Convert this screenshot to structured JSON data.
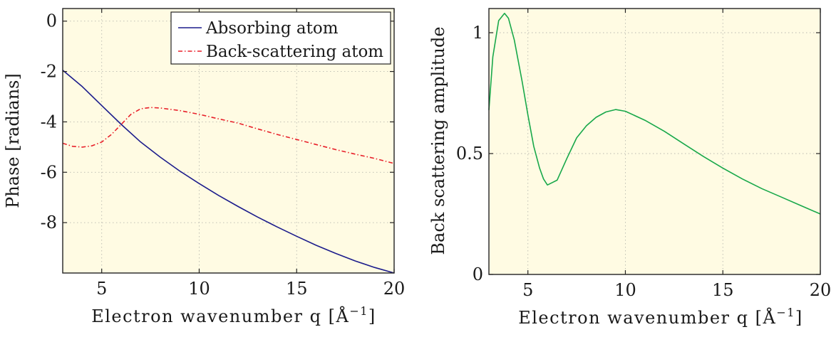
{
  "chart_data": [
    {
      "type": "line",
      "xlabel": "Electron wavenumber q [Å",
      "xlabel_sup": "−1",
      "xlabel_close": "]",
      "ylabel": "Phase [radians]",
      "xlim": [
        3,
        20
      ],
      "ylim": [
        -10,
        0.5
      ],
      "x_ticks": [
        5,
        10,
        15,
        20
      ],
      "y_ticks": [
        0,
        -2,
        -4,
        -6,
        -8
      ],
      "grid": true,
      "legend_position": "top-right",
      "background": "#fffbe3",
      "series": [
        {
          "name": "Absorbing atom",
          "color": "#1c1c8c",
          "style": "solid",
          "x": [
            3,
            4,
            5,
            6,
            7,
            8,
            9,
            10,
            11,
            12,
            13,
            14,
            15,
            16,
            17,
            18,
            19,
            20
          ],
          "y": [
            -1.95,
            -2.6,
            -3.35,
            -4.1,
            -4.8,
            -5.4,
            -5.95,
            -6.45,
            -6.92,
            -7.36,
            -7.78,
            -8.17,
            -8.54,
            -8.9,
            -9.22,
            -9.52,
            -9.78,
            -10.0
          ]
        },
        {
          "name": "Back-scattering atom",
          "color": "#e8202a",
          "style": "dashdot",
          "x": [
            3,
            3.5,
            4,
            4.5,
            5,
            5.5,
            6,
            6.5,
            7,
            7.5,
            8,
            9,
            10,
            11,
            12,
            13,
            14,
            15,
            16,
            17,
            18,
            19,
            20
          ],
          "y": [
            -4.85,
            -4.97,
            -5.0,
            -4.95,
            -4.8,
            -4.5,
            -4.1,
            -3.7,
            -3.48,
            -3.43,
            -3.45,
            -3.55,
            -3.7,
            -3.88,
            -4.05,
            -4.28,
            -4.5,
            -4.7,
            -4.9,
            -5.1,
            -5.28,
            -5.45,
            -5.65
          ]
        }
      ]
    },
    {
      "type": "line",
      "xlabel": "Electron wavenumber q [Å",
      "xlabel_sup": "−1",
      "xlabel_close": "]",
      "ylabel": "Back scattering amplitude",
      "xlim": [
        3,
        20
      ],
      "ylim": [
        0,
        1.1
      ],
      "x_ticks": [
        5,
        10,
        15,
        20
      ],
      "y_ticks": [
        0,
        0.5,
        1
      ],
      "grid": true,
      "background": "#fffbe3",
      "series": [
        {
          "color": "#18a84a",
          "style": "solid",
          "x": [
            3,
            3.2,
            3.5,
            3.8,
            4.0,
            4.3,
            4.7,
            5.0,
            5.3,
            5.6,
            5.8,
            6.0,
            6.5,
            7.0,
            7.5,
            8.0,
            8.5,
            9.0,
            9.5,
            10.0,
            11.0,
            12.0,
            13.0,
            14.0,
            15.0,
            16.0,
            17.0,
            18.0,
            19.0,
            20.0
          ],
          "y": [
            0.68,
            0.9,
            1.05,
            1.08,
            1.06,
            0.97,
            0.8,
            0.66,
            0.53,
            0.44,
            0.395,
            0.37,
            0.39,
            0.48,
            0.565,
            0.615,
            0.65,
            0.672,
            0.682,
            0.675,
            0.638,
            0.592,
            0.54,
            0.488,
            0.44,
            0.395,
            0.355,
            0.32,
            0.285,
            0.25
          ]
        }
      ]
    }
  ]
}
